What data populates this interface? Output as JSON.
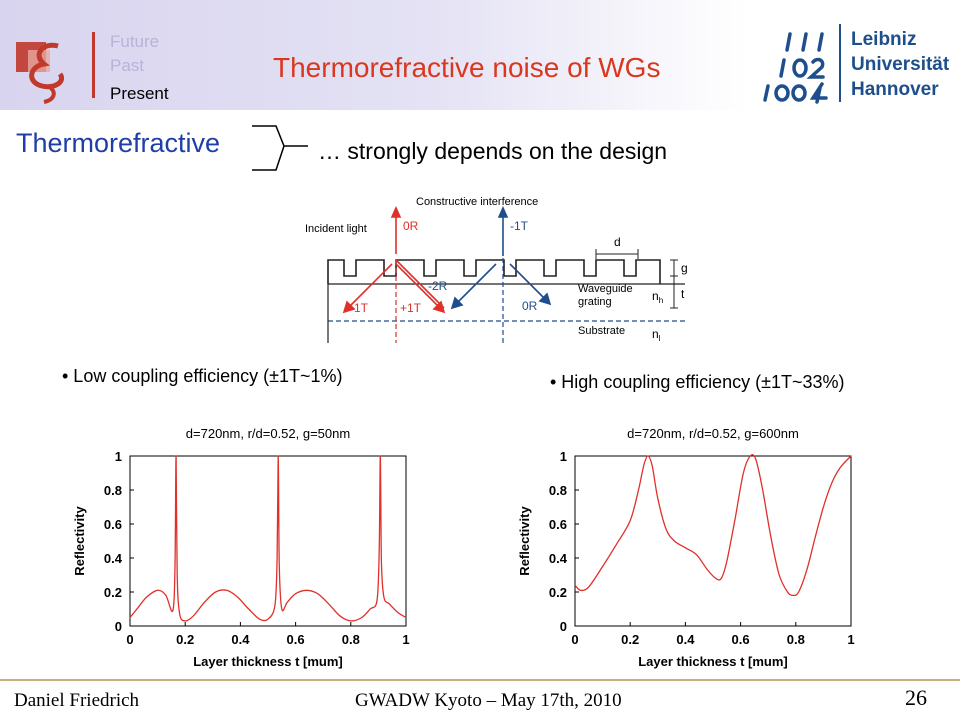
{
  "header": {
    "tagline": {
      "future": "Future",
      "past": "Past",
      "present": "Present"
    },
    "title": "Thermorefractive noise of WGs",
    "university": {
      "line1": "Leibniz",
      "line2": "Universität",
      "line3": "Hannover"
    },
    "colors": {
      "title": "#d9381e",
      "university": "#1f4e8c",
      "accent": "#c0392b"
    }
  },
  "body": {
    "thermo_label": "Thermorefractive",
    "depends_text": "… strongly depends on the design",
    "diagram": {
      "constructive": "Constructive interference",
      "incident": "Incident light",
      "r0_top": "0R",
      "t1_top": "-1T",
      "d": "d",
      "g": "g",
      "t": "t",
      "minus2r": "-2R",
      "minus1t": "-1T",
      "plus1t": "+1T",
      "r0_bottom": "0R",
      "waveguide_line1": "Waveguide",
      "waveguide_line2": "grating",
      "nh": "n",
      "nh_sub": "h",
      "substrate": "Substrate",
      "nl": "n",
      "nl_sub": "l"
    },
    "bullet_low": "• Low coupling efficiency (±1T~1%)",
    "bullet_high": "• High coupling efficiency (±1T~33%)"
  },
  "chart_data": [
    {
      "type": "line",
      "title": "d=720nm, r/d=0.52, g=50nm",
      "xlabel": "Layer thickness t [mum]",
      "ylabel": "Reflectivity",
      "xlim": [
        0,
        1
      ],
      "ylim": [
        0,
        1
      ],
      "xticks": [
        "0",
        "0.2",
        "0.4",
        "0.6",
        "0.8",
        "1"
      ],
      "yticks": [
        "0",
        "0.2",
        "0.4",
        "0.6",
        "0.8",
        "1"
      ],
      "series": [
        {
          "color": "#e0302a",
          "x": [
            0,
            0.03,
            0.06,
            0.1,
            0.13,
            0.155,
            0.163,
            0.167,
            0.171,
            0.18,
            0.2,
            0.23,
            0.27,
            0.31,
            0.35,
            0.39,
            0.43,
            0.47,
            0.5,
            0.525,
            0.533,
            0.537,
            0.541,
            0.55,
            0.57,
            0.6,
            0.64,
            0.68,
            0.72,
            0.76,
            0.8,
            0.84,
            0.87,
            0.895,
            0.903,
            0.907,
            0.911,
            0.92,
            0.94,
            0.97,
            1.0
          ],
          "y": [
            0.05,
            0.11,
            0.17,
            0.21,
            0.18,
            0.09,
            0.35,
            1.0,
            0.3,
            0.07,
            0.03,
            0.06,
            0.14,
            0.2,
            0.21,
            0.17,
            0.1,
            0.04,
            0.04,
            0.12,
            0.4,
            1.0,
            0.35,
            0.1,
            0.14,
            0.19,
            0.21,
            0.19,
            0.13,
            0.06,
            0.03,
            0.05,
            0.1,
            0.15,
            0.45,
            1.0,
            0.38,
            0.17,
            0.13,
            0.08,
            0.05
          ]
        }
      ]
    },
    {
      "type": "line",
      "title": "d=720nm, r/d=0.52, g=600nm",
      "xlabel": "Layer thickness t [mum]",
      "ylabel": "Reflectivity",
      "xlim": [
        0,
        1
      ],
      "ylim": [
        0,
        1
      ],
      "xticks": [
        "0",
        "0.2",
        "0.4",
        "0.6",
        "0.8",
        "1"
      ],
      "yticks": [
        "0",
        "0.2",
        "0.4",
        "0.6",
        "0.8",
        "1"
      ],
      "series": [
        {
          "color": "#e0302a",
          "x": [
            0,
            0.02,
            0.05,
            0.1,
            0.15,
            0.2,
            0.23,
            0.25,
            0.265,
            0.28,
            0.3,
            0.33,
            0.36,
            0.4,
            0.44,
            0.48,
            0.51,
            0.53,
            0.55,
            0.58,
            0.61,
            0.635,
            0.655,
            0.68,
            0.71,
            0.74,
            0.77,
            0.79,
            0.81,
            0.84,
            0.87,
            0.9,
            0.93,
            0.96,
            1.0
          ],
          "y": [
            0.24,
            0.21,
            0.23,
            0.35,
            0.48,
            0.62,
            0.8,
            0.95,
            1.0,
            0.94,
            0.75,
            0.57,
            0.5,
            0.46,
            0.42,
            0.33,
            0.28,
            0.28,
            0.38,
            0.63,
            0.9,
            1.0,
            0.98,
            0.8,
            0.52,
            0.3,
            0.2,
            0.18,
            0.2,
            0.33,
            0.52,
            0.7,
            0.84,
            0.93,
            1.0
          ]
        }
      ]
    }
  ],
  "footer": {
    "author": "Daniel Friedrich",
    "event": "GWADW Kyoto – May 17th, 2010",
    "page_number": "26"
  }
}
